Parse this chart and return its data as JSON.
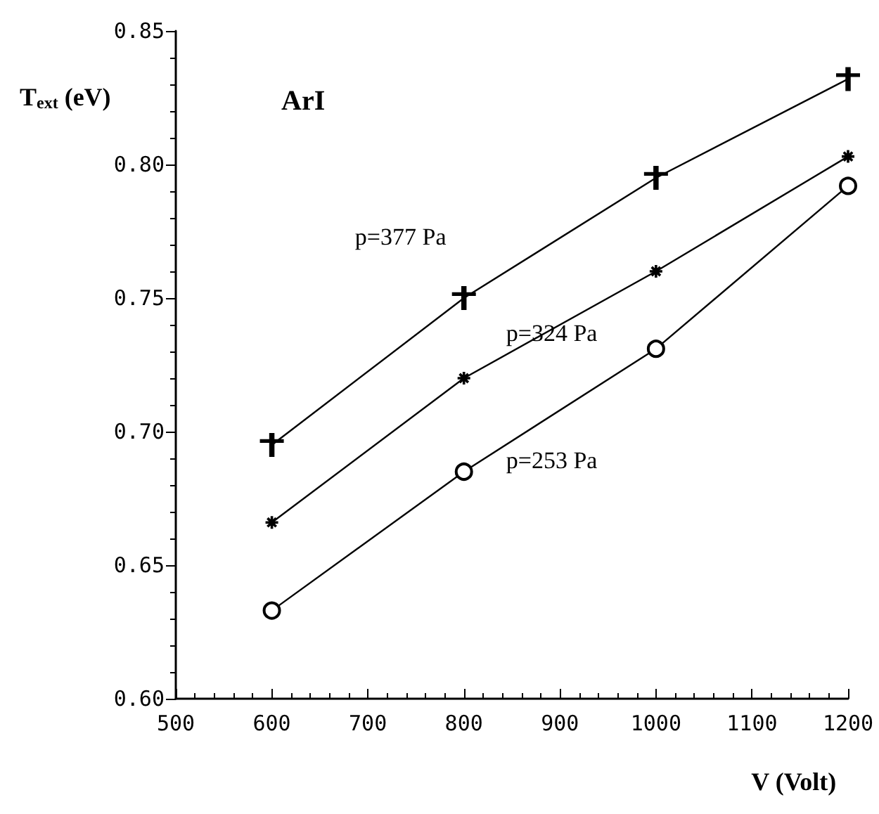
{
  "chart_data": {
    "type": "line",
    "xlabel": "V (Volt)",
    "ylabel": "T$_{ext}$ (eV)",
    "annotations": [
      "ArI"
    ],
    "x": [
      600,
      800,
      1000,
      1200
    ],
    "series": [
      {
        "name": "p=377 Pa",
        "color": "#000000",
        "marker": "cross",
        "values": [
          0.695,
          0.75,
          0.795,
          0.832
        ]
      },
      {
        "name": "p=324 Pa",
        "color": "#000000",
        "marker": "star",
        "values": [
          0.666,
          0.72,
          0.76,
          0.803
        ]
      },
      {
        "name": "p=253 Pa",
        "color": "#000000",
        "marker": "circle",
        "values": [
          0.633,
          0.685,
          0.731,
          0.792
        ]
      }
    ],
    "xlim": [
      500,
      1200
    ],
    "xticks": [
      500,
      600,
      700,
      800,
      900,
      1000,
      1100,
      1200
    ],
    "ylim": [
      0.6,
      0.85
    ],
    "yticks": [
      {
        "value": 0.6,
        "label": "0.60"
      },
      0.65,
      {
        "value": 0.7,
        "label": "0.70"
      },
      0.75,
      {
        "value": 0.8,
        "label": "0.80"
      },
      0.85
    ],
    "grid": false,
    "legend": false,
    "line_style": "solid"
  }
}
